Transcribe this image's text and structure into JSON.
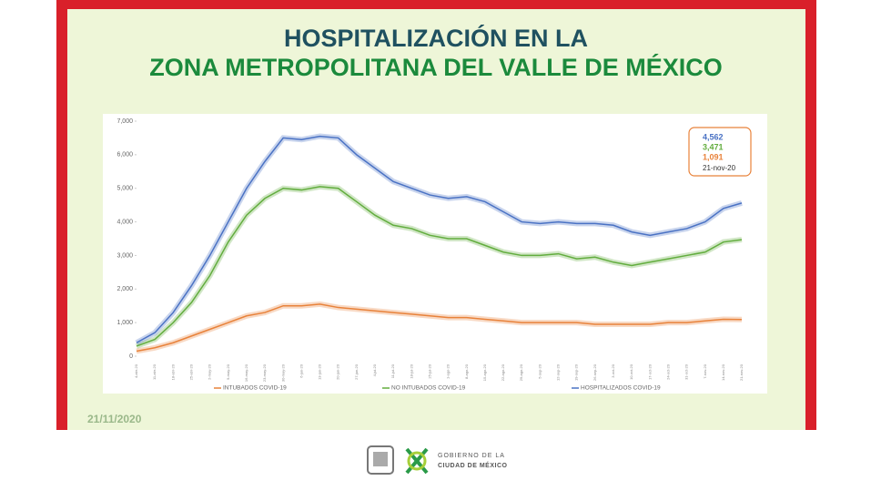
{
  "header": {
    "line1": "HOSPITALIZACIÓN EN LA",
    "line2": "ZONA METROPOLITANA DEL VALLE DE MÉXICO"
  },
  "date": "21/11/2020",
  "footer": {
    "line1": "GOBIERNO DE LA",
    "line2": "CIUDAD DE MÉXICO"
  },
  "chart_data": {
    "type": "line",
    "x": [
      "4-abr-20",
      "11-abr-20",
      "18-abr-20",
      "25-abr-20",
      "2-may-20",
      "9-may-20",
      "16-may-20",
      "23-may-20",
      "30-may-20",
      "6-jun-20",
      "13-jun-20",
      "20-jun-20",
      "27-jun-20",
      "4-jul-20",
      "11-jul-20",
      "18-jul-20",
      "25-jul-20",
      "1-ago-20",
      "8-ago-20",
      "15-ago-20",
      "22-ago-20",
      "29-ago-20",
      "5-sep-20",
      "12-sep-20",
      "19-sep-20",
      "26-sep-20",
      "3-oct-20",
      "10-oct-20",
      "17-oct-20",
      "24-oct-20",
      "31-oct-20",
      "7-nov-20",
      "14-nov-20",
      "21-nov-20"
    ],
    "series": [
      {
        "name": "INTUBADOS COVID-19",
        "color": "#e8823a",
        "last_label": "1,091",
        "values": [
          150,
          250,
          400,
          600,
          800,
          1000,
          1200,
          1300,
          1500,
          1500,
          1550,
          1450,
          1400,
          1350,
          1300,
          1250,
          1200,
          1150,
          1150,
          1100,
          1050,
          1000,
          1000,
          1000,
          1000,
          950,
          950,
          950,
          950,
          1000,
          1000,
          1050,
          1100,
          1091
        ]
      },
      {
        "name": "NO INTUBADOS COVID-19",
        "color": "#62ad3e",
        "last_label": "3,471",
        "values": [
          300,
          500,
          1000,
          1600,
          2400,
          3400,
          4200,
          4700,
          5000,
          4950,
          5050,
          5000,
          4600,
          4200,
          3900,
          3800,
          3600,
          3500,
          3500,
          3300,
          3100,
          3000,
          3000,
          3050,
          2900,
          2950,
          2800,
          2700,
          2800,
          2900,
          3000,
          3100,
          3400,
          3471
        ]
      },
      {
        "name": "HOSPITALIZADOS COVID-19",
        "color": "#4a72c4",
        "last_label": "4,562",
        "values": [
          400,
          700,
          1300,
          2100,
          3000,
          4000,
          5000,
          5800,
          6500,
          6450,
          6550,
          6500,
          6000,
          5600,
          5200,
          5000,
          4800,
          4700,
          4750,
          4600,
          4300,
          4000,
          3950,
          4000,
          3950,
          3950,
          3900,
          3700,
          3600,
          3700,
          3800,
          4000,
          4400,
          4562
        ]
      }
    ],
    "ylim": [
      0,
      7000
    ],
    "yticks": [
      0,
      {
        "value": 1000,
        "label": "1,000"
      },
      {
        "value": 2000,
        "label": "2,000"
      },
      {
        "value": 3000,
        "label": "3,000"
      },
      {
        "value": 4000,
        "label": "4,000"
      },
      {
        "value": 5000,
        "label": "5,000"
      },
      {
        "value": 6000,
        "label": "6,000"
      },
      {
        "value": 7000,
        "label": "7,000"
      }
    ],
    "grid": false
  }
}
